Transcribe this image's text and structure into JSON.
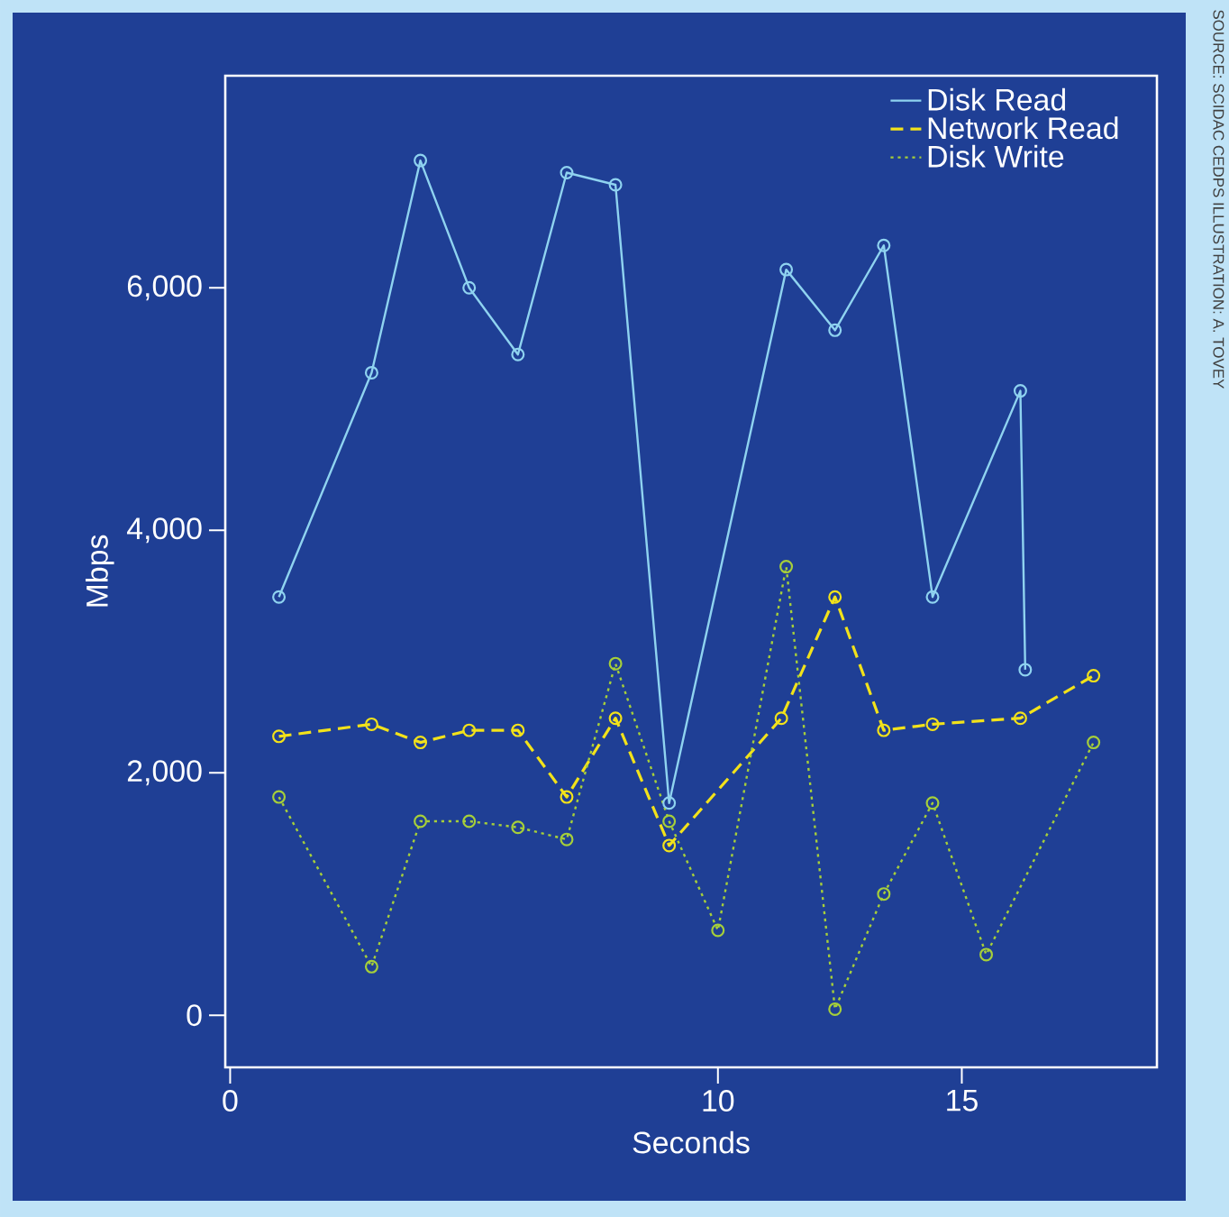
{
  "chart_data": {
    "type": "line",
    "xlabel": "Seconds",
    "ylabel": "Mbps",
    "xlim": [
      -0.1,
      19
    ],
    "ylim": [
      -430,
      7750
    ],
    "xticks": [
      0,
      10,
      15
    ],
    "yticks": [
      0,
      {
        "value": 2000,
        "label": "2,000"
      },
      {
        "value": 4000,
        "label": "4,000"
      },
      {
        "value": 6000,
        "label": "6,000"
      }
    ],
    "marker": "circle",
    "legend": "top right",
    "annotations": [
      "SOURCE: SCIDAC CEDPS ILLUSTRATION: A. TOVEY"
    ],
    "series": [
      {
        "name": "Disk Read",
        "color": "#8fd3f0",
        "line_style": "solid",
        "x": [
          1.0,
          2.9,
          3.9,
          4.9,
          5.9,
          6.9,
          7.9,
          9.0,
          11.4,
          12.4,
          13.4,
          14.4,
          16.2,
          16.3
        ],
        "values": [
          3450,
          5300,
          7050,
          6000,
          5450,
          6950,
          6850,
          1750,
          6150,
          5650,
          6350,
          3450,
          5150,
          2850
        ]
      },
      {
        "name": "Network Read",
        "color": "#f2e21a",
        "line_style": "dashed",
        "x": [
          1.0,
          2.9,
          3.9,
          4.9,
          5.9,
          6.9,
          7.9,
          9.0,
          11.3,
          12.4,
          13.4,
          14.4,
          16.2,
          17.7
        ],
        "values": [
          2300,
          2400,
          2250,
          2350,
          2350,
          1800,
          2450,
          1400,
          2450,
          3450,
          2350,
          2400,
          2450,
          2800
        ]
      },
      {
        "name": "Disk Write",
        "color": "#a6cf3a",
        "line_style": "dotted",
        "x": [
          1.0,
          2.9,
          3.9,
          4.9,
          5.9,
          6.9,
          7.9,
          9.0,
          10.0,
          11.4,
          12.4,
          13.4,
          14.4,
          15.5,
          17.7
        ],
        "values": [
          1800,
          400,
          1600,
          1600,
          1550,
          1450,
          2900,
          1600,
          700,
          3700,
          50,
          1000,
          1750,
          500,
          2250
        ]
      }
    ]
  }
}
